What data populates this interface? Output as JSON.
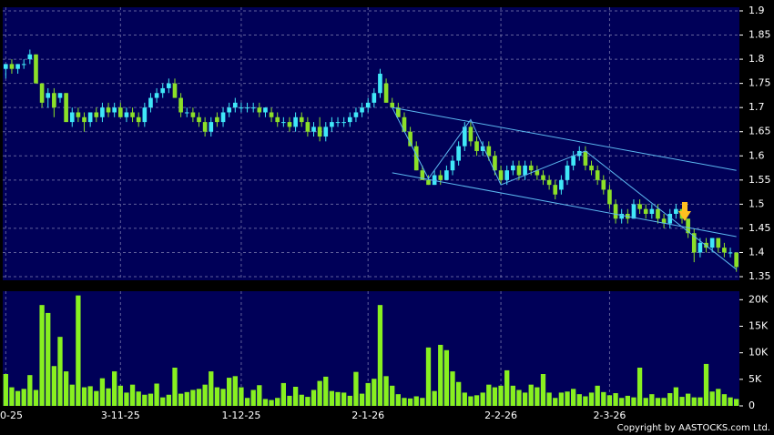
{
  "chart_data": [
    {
      "type": "candlestick",
      "up_color": "#40e8f8",
      "down_color": "#8ce028",
      "ylim": [
        1.3425,
        1.9075
      ],
      "yticks": [
        1.35,
        1.4,
        1.45,
        1.5,
        1.55,
        1.6,
        1.65,
        1.7,
        1.75,
        1.8,
        1.85,
        1.9
      ],
      "grid": true,
      "line_color": "#5cb8f0",
      "candles": [
        [
          1.78,
          1.79,
          1.76,
          1.79
        ],
        [
          1.79,
          1.8,
          1.77,
          1.78
        ],
        [
          1.78,
          1.79,
          1.77,
          1.79
        ],
        [
          1.79,
          1.8,
          1.78,
          1.79
        ],
        [
          1.8,
          1.82,
          1.79,
          1.81
        ],
        [
          1.81,
          1.81,
          1.75,
          1.75
        ],
        [
          1.75,
          1.75,
          1.7,
          1.71
        ],
        [
          1.72,
          1.74,
          1.7,
          1.73
        ],
        [
          1.73,
          1.74,
          1.68,
          1.7
        ],
        [
          1.72,
          1.73,
          1.71,
          1.73
        ],
        [
          1.73,
          1.73,
          1.67,
          1.67
        ],
        [
          1.67,
          1.7,
          1.66,
          1.69
        ],
        [
          1.69,
          1.7,
          1.67,
          1.68
        ],
        [
          1.68,
          1.69,
          1.65,
          1.67
        ],
        [
          1.67,
          1.69,
          1.66,
          1.69
        ],
        [
          1.69,
          1.7,
          1.67,
          1.68
        ],
        [
          1.68,
          1.71,
          1.67,
          1.7
        ],
        [
          1.7,
          1.71,
          1.68,
          1.69
        ],
        [
          1.69,
          1.71,
          1.68,
          1.7
        ],
        [
          1.7,
          1.71,
          1.68,
          1.68
        ],
        [
          1.68,
          1.7,
          1.67,
          1.69
        ],
        [
          1.69,
          1.7,
          1.67,
          1.68
        ],
        [
          1.68,
          1.69,
          1.66,
          1.67
        ],
        [
          1.67,
          1.71,
          1.66,
          1.7
        ],
        [
          1.7,
          1.73,
          1.69,
          1.72
        ],
        [
          1.72,
          1.74,
          1.71,
          1.73
        ],
        [
          1.73,
          1.75,
          1.72,
          1.74
        ],
        [
          1.74,
          1.76,
          1.73,
          1.75
        ],
        [
          1.75,
          1.76,
          1.72,
          1.72
        ],
        [
          1.72,
          1.73,
          1.68,
          1.69
        ],
        [
          1.69,
          1.7,
          1.68,
          1.69
        ],
        [
          1.69,
          1.7,
          1.67,
          1.68
        ],
        [
          1.68,
          1.69,
          1.66,
          1.67
        ],
        [
          1.67,
          1.68,
          1.64,
          1.65
        ],
        [
          1.65,
          1.68,
          1.64,
          1.67
        ],
        [
          1.68,
          1.69,
          1.66,
          1.67
        ],
        [
          1.67,
          1.7,
          1.66,
          1.69
        ],
        [
          1.69,
          1.71,
          1.68,
          1.7
        ],
        [
          1.7,
          1.72,
          1.69,
          1.71
        ],
        [
          1.7,
          1.71,
          1.69,
          1.7
        ],
        [
          1.7,
          1.71,
          1.69,
          1.7
        ],
        [
          1.7,
          1.71,
          1.69,
          1.7
        ],
        [
          1.7,
          1.71,
          1.68,
          1.69
        ],
        [
          1.69,
          1.7,
          1.68,
          1.7
        ],
        [
          1.69,
          1.7,
          1.67,
          1.68
        ],
        [
          1.68,
          1.69,
          1.66,
          1.67
        ],
        [
          1.67,
          1.68,
          1.66,
          1.67
        ],
        [
          1.67,
          1.68,
          1.65,
          1.66
        ],
        [
          1.66,
          1.69,
          1.65,
          1.68
        ],
        [
          1.68,
          1.69,
          1.66,
          1.67
        ],
        [
          1.67,
          1.68,
          1.64,
          1.65
        ],
        [
          1.65,
          1.67,
          1.64,
          1.66
        ],
        [
          1.66,
          1.68,
          1.63,
          1.64
        ],
        [
          1.64,
          1.67,
          1.63,
          1.66
        ],
        [
          1.66,
          1.68,
          1.65,
          1.67
        ],
        [
          1.67,
          1.68,
          1.66,
          1.67
        ],
        [
          1.67,
          1.68,
          1.66,
          1.67
        ],
        [
          1.67,
          1.69,
          1.66,
          1.68
        ],
        [
          1.68,
          1.7,
          1.67,
          1.69
        ],
        [
          1.69,
          1.71,
          1.68,
          1.7
        ],
        [
          1.7,
          1.72,
          1.69,
          1.71
        ],
        [
          1.71,
          1.74,
          1.7,
          1.73
        ],
        [
          1.73,
          1.78,
          1.72,
          1.77
        ],
        [
          1.75,
          1.76,
          1.71,
          1.71
        ],
        [
          1.71,
          1.72,
          1.7,
          1.7
        ],
        [
          1.7,
          1.71,
          1.68,
          1.68
        ],
        [
          1.68,
          1.69,
          1.65,
          1.65
        ],
        [
          1.65,
          1.66,
          1.62,
          1.62
        ],
        [
          1.62,
          1.63,
          1.57,
          1.57
        ],
        [
          1.57,
          1.58,
          1.55,
          1.55
        ],
        [
          1.55,
          1.56,
          1.54,
          1.54
        ],
        [
          1.54,
          1.57,
          1.54,
          1.56
        ],
        [
          1.56,
          1.57,
          1.54,
          1.55
        ],
        [
          1.55,
          1.58,
          1.55,
          1.57
        ],
        [
          1.57,
          1.6,
          1.56,
          1.59
        ],
        [
          1.59,
          1.63,
          1.58,
          1.62
        ],
        [
          1.62,
          1.67,
          1.61,
          1.66
        ],
        [
          1.66,
          1.67,
          1.62,
          1.63
        ],
        [
          1.63,
          1.64,
          1.6,
          1.61
        ],
        [
          1.61,
          1.63,
          1.6,
          1.62
        ],
        [
          1.62,
          1.63,
          1.59,
          1.6
        ],
        [
          1.6,
          1.61,
          1.56,
          1.57
        ],
        [
          1.57,
          1.58,
          1.54,
          1.55
        ],
        [
          1.55,
          1.58,
          1.54,
          1.57
        ],
        [
          1.57,
          1.59,
          1.56,
          1.58
        ],
        [
          1.58,
          1.59,
          1.55,
          1.56
        ],
        [
          1.56,
          1.59,
          1.55,
          1.58
        ],
        [
          1.58,
          1.59,
          1.56,
          1.57
        ],
        [
          1.57,
          1.58,
          1.55,
          1.56
        ],
        [
          1.56,
          1.57,
          1.54,
          1.55
        ],
        [
          1.55,
          1.56,
          1.53,
          1.54
        ],
        [
          1.54,
          1.55,
          1.51,
          1.52
        ],
        [
          1.53,
          1.56,
          1.52,
          1.55
        ],
        [
          1.55,
          1.59,
          1.54,
          1.58
        ],
        [
          1.58,
          1.61,
          1.57,
          1.6
        ],
        [
          1.6,
          1.62,
          1.59,
          1.61
        ],
        [
          1.61,
          1.62,
          1.57,
          1.58
        ],
        [
          1.58,
          1.59,
          1.56,
          1.57
        ],
        [
          1.57,
          1.58,
          1.54,
          1.55
        ],
        [
          1.55,
          1.56,
          1.52,
          1.53
        ],
        [
          1.53,
          1.54,
          1.49,
          1.5
        ],
        [
          1.5,
          1.51,
          1.46,
          1.47
        ],
        [
          1.47,
          1.49,
          1.46,
          1.48
        ],
        [
          1.48,
          1.49,
          1.46,
          1.47
        ],
        [
          1.47,
          1.51,
          1.47,
          1.5
        ],
        [
          1.5,
          1.51,
          1.48,
          1.49
        ],
        [
          1.49,
          1.5,
          1.47,
          1.48
        ],
        [
          1.48,
          1.5,
          1.47,
          1.49
        ],
        [
          1.49,
          1.5,
          1.46,
          1.47
        ],
        [
          1.47,
          1.48,
          1.45,
          1.46
        ],
        [
          1.46,
          1.49,
          1.45,
          1.48
        ],
        [
          1.48,
          1.5,
          1.47,
          1.49
        ],
        [
          1.49,
          1.49,
          1.46,
          1.47
        ],
        [
          1.47,
          1.47,
          1.43,
          1.44
        ],
        [
          1.44,
          1.45,
          1.38,
          1.4
        ],
        [
          1.4,
          1.43,
          1.39,
          1.42
        ],
        [
          1.42,
          1.43,
          1.4,
          1.41
        ],
        [
          1.41,
          1.43,
          1.4,
          1.43
        ],
        [
          1.43,
          1.43,
          1.4,
          1.41
        ],
        [
          1.41,
          1.42,
          1.39,
          1.4
        ],
        [
          1.4,
          1.41,
          1.39,
          1.4
        ],
        [
          1.4,
          1.4,
          1.36,
          1.37
        ]
      ],
      "channel": [
        [
          64,
          1.7,
          121,
          1.57
        ],
        [
          64,
          1.565,
          121,
          1.433
        ]
      ],
      "zigzag_x": [
        64,
        70,
        77,
        82,
        96,
        121
      ],
      "zigzag_y": [
        1.7,
        1.553,
        1.675,
        1.54,
        1.61,
        1.365
      ]
    },
    {
      "type": "bar",
      "color": "#88f020",
      "ylim": [
        0,
        21600
      ],
      "yticks": [
        0,
        {
          "value": 5000,
          "label": "5K"
        },
        {
          "value": 10000,
          "label": "10K"
        },
        {
          "value": 15000,
          "label": "15K"
        },
        {
          "value": 20000,
          "label": "20K"
        }
      ],
      "xticks": [
        {
          "value": 0,
          "label": "0-25"
        },
        {
          "value": 19,
          "label": "3-11-25"
        },
        {
          "value": 39,
          "label": "1-12-25"
        },
        {
          "value": 60,
          "label": "2-1-26"
        },
        {
          "value": 82,
          "label": "2-2-26"
        },
        {
          "value": 100,
          "label": "2-3-26"
        }
      ],
      "values": [
        6000,
        3500,
        2800,
        3200,
        5800,
        3000,
        19000,
        17500,
        7500,
        13000,
        6500,
        4000,
        20800,
        3500,
        3700,
        2800,
        5200,
        3300,
        6500,
        3800,
        2500,
        4000,
        2700,
        2100,
        2300,
        4200,
        1600,
        2100,
        7200,
        2300,
        2600,
        3000,
        3200,
        4000,
        6500,
        3500,
        3200,
        5300,
        5600,
        3500,
        1500,
        3000,
        3900,
        1300,
        1100,
        1500,
        4300,
        1900,
        3600,
        2100,
        1700,
        3000,
        4700,
        5500,
        2800,
        2600,
        2500,
        1900,
        6400,
        2300,
        4300,
        5100,
        19000,
        5600,
        3800,
        2200,
        1500,
        1400,
        1800,
        1500,
        11000,
        2800,
        11500,
        10500,
        6500,
        4500,
        2500,
        1800,
        2000,
        2500,
        4000,
        3500,
        3800,
        6700,
        3800,
        3000,
        2500,
        4000,
        3500,
        6000,
        2500,
        1500,
        2500,
        2700,
        3200,
        2200,
        1800,
        2500,
        3800,
        2600,
        2000,
        2400,
        1500,
        1900,
        1600,
        7200,
        1500,
        2200,
        1500,
        1500,
        2400,
        3500,
        1700,
        2300,
        1600,
        1600,
        7900,
        2700,
        3200,
        2200,
        1600,
        1300
      ],
      "source": "Copyright by AASTOCKS.com Ltd."
    }
  ]
}
